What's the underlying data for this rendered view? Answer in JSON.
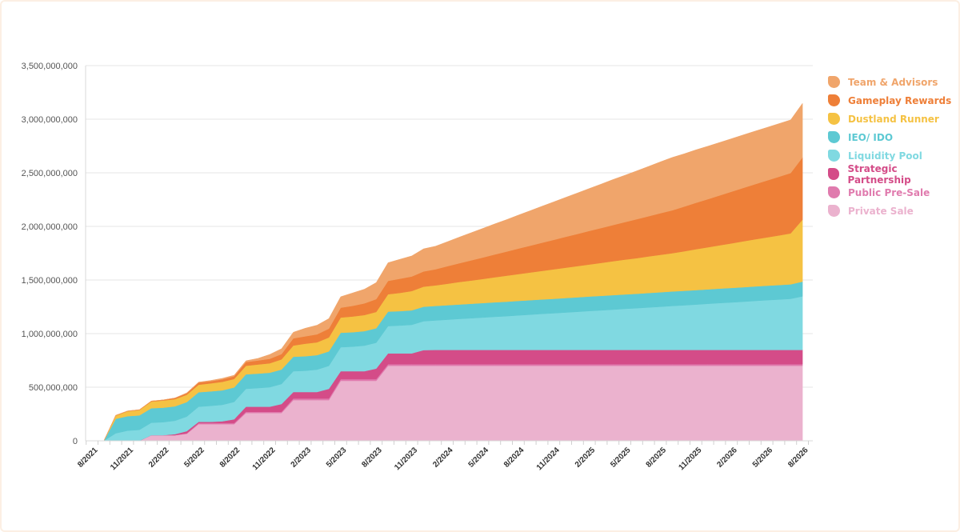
{
  "chart_data": {
    "type": "area",
    "stacked": true,
    "title": "",
    "xlabel": "",
    "ylabel": "",
    "ylim": [
      0,
      3500000000
    ],
    "yticks": [
      "0",
      "500,000,000",
      "1,000,000,000",
      "1,500,000,000",
      "2,000,000,000",
      "2,500,000,000",
      "3,000,000,000",
      "3,500,000,000"
    ],
    "xticks": [
      "8/2021",
      "11/2021",
      "2/2022",
      "5/2022",
      "8/2022",
      "11/2022",
      "2/2023",
      "5/2023",
      "8/2023",
      "11/2023",
      "2/2024",
      "5/2024",
      "8/2024",
      "11/2024",
      "2/2025",
      "5/2025",
      "8/2025",
      "11/2025",
      "2/2026",
      "5/2026",
      "8/2026"
    ],
    "grid": true,
    "legend_position": "right",
    "unit_multiplier": 1000000,
    "x": [
      "8/2021",
      "9/2021",
      "10/2021",
      "11/2021",
      "12/2021",
      "1/2022",
      "2/2022",
      "3/2022",
      "4/2022",
      "5/2022",
      "6/2022",
      "7/2022",
      "8/2022",
      "9/2022",
      "10/2022",
      "11/2022",
      "12/2022",
      "1/2023",
      "2/2023",
      "3/2023",
      "4/2023",
      "5/2023",
      "6/2023",
      "7/2023",
      "8/2023",
      "9/2023",
      "10/2023",
      "11/2023",
      "12/2023",
      "1/2024",
      "2/2024",
      "3/2024",
      "4/2024",
      "5/2024",
      "6/2024",
      "7/2024",
      "8/2024",
      "9/2024",
      "10/2024",
      "11/2024",
      "12/2024",
      "1/2025",
      "2/2025",
      "3/2025",
      "4/2025",
      "5/2025",
      "6/2025",
      "7/2025",
      "8/2025",
      "9/2025",
      "10/2025",
      "11/2025",
      "12/2025",
      "1/2026",
      "2/2026",
      "3/2026",
      "4/2026",
      "5/2026",
      "6/2026",
      "7/2026"
    ],
    "series": [
      {
        "name": "Private Sale",
        "color": "#EBB2CE",
        "values": [
          0,
          0,
          0,
          0,
          52,
          52,
          52,
          65,
          155,
          155,
          155,
          155,
          260,
          260,
          260,
          260,
          380,
          380,
          380,
          380,
          560,
          560,
          560,
          560,
          700,
          700,
          700,
          700,
          700,
          700,
          700,
          700,
          700,
          700,
          700,
          700,
          700,
          700,
          700,
          700,
          700,
          700,
          700,
          700,
          700,
          700,
          700,
          700,
          700,
          700,
          700,
          700,
          700,
          700,
          700,
          700,
          700,
          700,
          700,
          700
        ]
      },
      {
        "name": "Public Pre-Sale",
        "color": "#E07BAE",
        "values": [
          0,
          0,
          0,
          0,
          0,
          0,
          0,
          5,
          10,
          10,
          10,
          10,
          10,
          10,
          10,
          10,
          15,
          15,
          15,
          15,
          15,
          15,
          15,
          15,
          15,
          15,
          15,
          15,
          15,
          15,
          15,
          15,
          15,
          15,
          15,
          15,
          15,
          15,
          15,
          15,
          15,
          15,
          15,
          15,
          15,
          15,
          15,
          15,
          15,
          15,
          15,
          15,
          15,
          15,
          15,
          15,
          15,
          15,
          15,
          15
        ]
      },
      {
        "name": "Strategic Partnership",
        "color": "#D44C88",
        "values": [
          0,
          0,
          0,
          0,
          0,
          0,
          10,
          20,
          12,
          12,
          17,
          36,
          48,
          48,
          48,
          73,
          60,
          60,
          60,
          90,
          74,
          74,
          74,
          99,
          101,
          101,
          101,
          131,
          133,
          133,
          133,
          133,
          133,
          133,
          133,
          133,
          133,
          133,
          133,
          133,
          133,
          133,
          133,
          133,
          133,
          133,
          133,
          133,
          133,
          133,
          133,
          133,
          133,
          133,
          133,
          133,
          133,
          133,
          133,
          133
        ]
      },
      {
        "name": "Liquidity Pool",
        "color": "#80D9E1",
        "values": [
          0,
          70,
          95,
          102,
          117,
          122,
          125,
          136,
          141,
          149,
          154,
          162,
          167,
          174,
          182,
          187,
          194,
          199,
          209,
          214,
          224,
          229,
          239,
          241,
          254,
          259,
          266,
          270,
          275,
          282,
          289,
          295,
          302,
          309,
          315,
          322,
          329,
          336,
          342,
          349,
          356,
          363,
          369,
          376,
          383,
          389,
          396,
          403,
          410,
          416,
          423,
          430,
          437,
          443,
          450,
          457,
          464,
          470,
          477,
          500
        ]
      },
      {
        "name": "IEO/ IDO",
        "color": "#5DC9D3",
        "values": [
          0,
          135,
          135,
          135,
          135,
          135,
          135,
          135,
          135,
          135,
          135,
          135,
          135,
          135,
          135,
          135,
          135,
          135,
          135,
          135,
          135,
          135,
          135,
          135,
          135,
          135,
          135,
          135,
          135,
          135,
          135,
          135,
          135,
          135,
          135,
          135,
          135,
          135,
          135,
          135,
          135,
          135,
          135,
          135,
          135,
          135,
          135,
          135,
          135,
          135,
          135,
          135,
          135,
          135,
          135,
          135,
          135,
          135,
          135,
          137
        ]
      },
      {
        "name": "Dustland Runner",
        "color": "#F5C243",
        "values": [
          0,
          30,
          45,
          50,
          62,
          67,
          67,
          69,
          70,
          75,
          79,
          79,
          80,
          85,
          88,
          95,
          105,
          117,
          120,
          130,
          142,
          147,
          150,
          152,
          162,
          170,
          180,
          187,
          192,
          200,
          209,
          217,
          225,
          233,
          242,
          250,
          258,
          266,
          275,
          283,
          291,
          299,
          308,
          316,
          324,
          332,
          341,
          349,
          357,
          369,
          381,
          392,
          404,
          416,
          428,
          440,
          451,
          463,
          475,
          578
        ]
      },
      {
        "name": "Gameplay Rewards",
        "color": "#EE7F38",
        "values": [
          0,
          3,
          3,
          3,
          5,
          5,
          10,
          13,
          20,
          20,
          23,
          25,
          35,
          37,
          42,
          49,
          67,
          69,
          74,
          82,
          92,
          99,
          109,
          120,
          125,
          132,
          136,
          142,
          150,
          163,
          175,
          188,
          200,
          213,
          225,
          238,
          250,
          263,
          275,
          288,
          300,
          313,
          325,
          338,
          350,
          363,
          375,
          388,
          400,
          416,
          433,
          449,
          465,
          482,
          498,
          514,
          530,
          547,
          563,
          580
        ]
      },
      {
        "name": "Team & Advisors",
        "color": "#F0A56B",
        "values": [
          0,
          0,
          0,
          0,
          0,
          0,
          0,
          5,
          5,
          7,
          10,
          10,
          12,
          20,
          40,
          50,
          57,
          75,
          85,
          94,
          102,
          120,
          132,
          154,
          169,
          181,
          192,
          211,
          215,
          229,
          243,
          257,
          271,
          285,
          298,
          312,
          326,
          340,
          354,
          368,
          382,
          396,
          410,
          424,
          437,
          451,
          465,
          479,
          493,
          493,
          494,
          494,
          494,
          494,
          495,
          495,
          495,
          495,
          495,
          505
        ]
      }
    ]
  },
  "legend": [
    {
      "label": "Team & Advisors",
      "color": "#F0A56B"
    },
    {
      "label": "Gameplay Rewards",
      "color": "#EE7F38"
    },
    {
      "label": "Dustland Runner",
      "color": "#F5C243"
    },
    {
      "label": "IEO/ IDO",
      "color": "#5DC9D3"
    },
    {
      "label": "Liquidity Pool",
      "color": "#80D9E1"
    },
    {
      "label": "Strategic Partnership",
      "color": "#D44C88"
    },
    {
      "label": "Public Pre-Sale",
      "color": "#E07BAE"
    },
    {
      "label": "Private Sale",
      "color": "#EBB2CE"
    }
  ]
}
